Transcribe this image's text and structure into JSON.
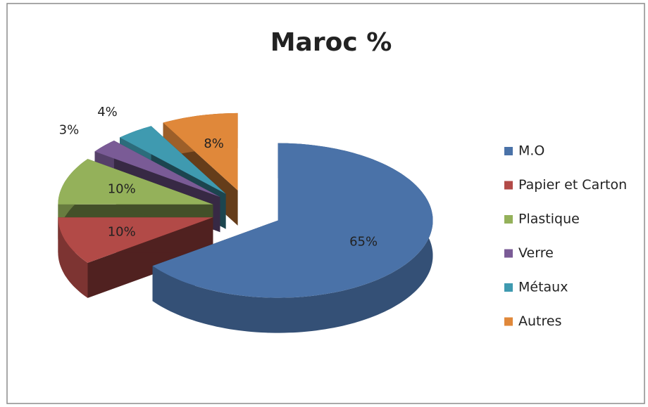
{
  "chart_data": {
    "type": "pie3d",
    "title": "Maroc %",
    "categories": [
      "M.O",
      "Papier et Carton",
      "Plastique",
      "Verre",
      "Métaux",
      "Autres"
    ],
    "values": [
      65,
      10,
      10,
      3,
      4,
      8
    ],
    "value_labels": [
      "65%",
      "10%",
      "10%",
      "3%",
      "4%",
      "8%"
    ],
    "colors": [
      "#4a72a8",
      "#b24a47",
      "#94b15a",
      "#7a5b96",
      "#3f9ab0",
      "#e0883a"
    ],
    "legend": "right"
  }
}
